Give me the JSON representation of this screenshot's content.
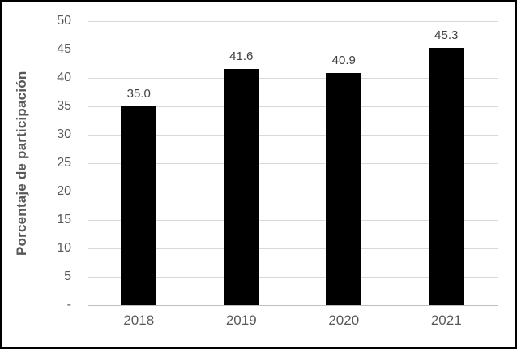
{
  "chart_data": {
    "type": "bar",
    "title": "",
    "xlabel": "",
    "ylabel": "Porcentaje de participación",
    "categories": [
      "2018",
      "2019",
      "2020",
      "2021"
    ],
    "values": [
      35.0,
      41.6,
      40.9,
      45.3
    ],
    "data_labels": [
      "35.0",
      "41.6",
      "40.9",
      "45.3"
    ],
    "ylim": [
      0,
      50
    ],
    "yticks": [
      {
        "value": 0,
        "label": "-"
      },
      {
        "value": 5,
        "label": "5"
      },
      {
        "value": 10,
        "label": "10"
      },
      {
        "value": 15,
        "label": "15"
      },
      {
        "value": 20,
        "label": "20"
      },
      {
        "value": 25,
        "label": "25"
      },
      {
        "value": 30,
        "label": "30"
      },
      {
        "value": 35,
        "label": "35"
      },
      {
        "value": 40,
        "label": "40"
      },
      {
        "value": 45,
        "label": "45"
      },
      {
        "value": 50,
        "label": "50"
      }
    ],
    "grid": true,
    "legend": "none",
    "colors": {
      "bar": "#000000",
      "axis_text": "#595959",
      "data_label": "#404040",
      "gridline": "#d9d9d9",
      "axis_line": "#bfbfbf",
      "frame_border": "#000000",
      "background": "#ffffff"
    }
  }
}
